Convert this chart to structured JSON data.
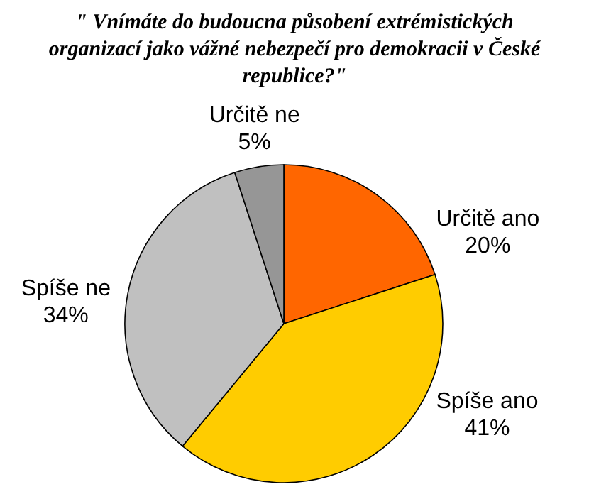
{
  "chart_data": {
    "type": "pie",
    "title": "\" Vnímáte do budoucna působení extrémistických organizací jako vážné nebezpečí pro demokracii v České republice?\"",
    "categories": [
      "Určitě ano",
      "Spíše ano",
      "Spíše ne",
      "Určitě ne"
    ],
    "values": [
      20,
      41,
      34,
      5
    ],
    "colors": [
      "#ff6600",
      "#ffcc00",
      "#c0c0c0",
      "#969696"
    ],
    "value_labels": [
      "20%",
      "41%",
      "34%",
      "5%"
    ]
  }
}
